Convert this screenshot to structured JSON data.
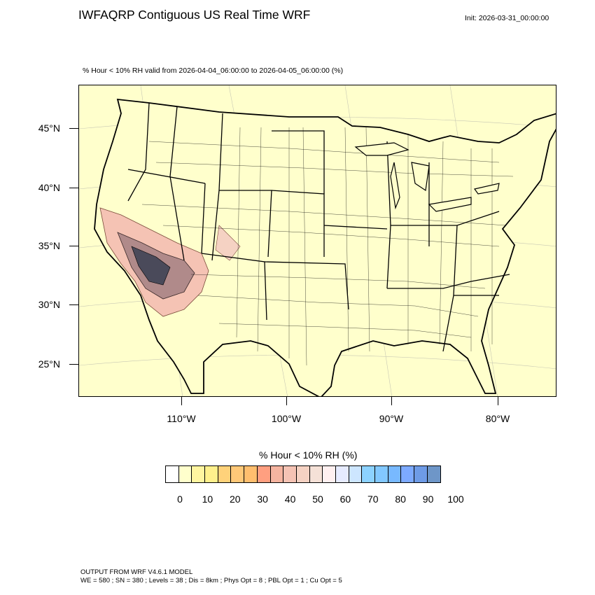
{
  "title": "IWFAQRP Contiguous US Real Time WRF",
  "init": "Init: 2026-03-31_00:00:00",
  "subtitle": "% Hour < 10% RH valid from 2026-04-04_06:00:00 to 2026-04-05_06:00:00   (%)",
  "map": {
    "background_color": "#ffffcc",
    "lat_labels": [
      "45°N",
      "40°N",
      "35°N",
      "30°N",
      "25°N"
    ],
    "lon_labels": [
      "110°W",
      "100°W",
      "90°W",
      "80°W"
    ],
    "fill_region": "Southwest US (southern California, Nevada, Arizona, western New Mexico)"
  },
  "colorbar": {
    "title": "% Hour < 10% RH  (%)",
    "colors": [
      "#ffffff",
      "#ffffcc",
      "#fff5a0",
      "#fff08c",
      "#ffd27a",
      "#ffc878",
      "#ffbe6e",
      "#ff9f80",
      "#f5b4a0",
      "#f5c3b4",
      "#f5d2c3",
      "#f5e1d7",
      "#fff0f0",
      "#e6ebff",
      "#cde6ff",
      "#8cd2ff",
      "#82c8ff",
      "#78b9ff",
      "#7daaff",
      "#6e9be6",
      "#6e96c8"
    ],
    "labels": [
      "0",
      "10",
      "20",
      "30",
      "40",
      "50",
      "60",
      "70",
      "80",
      "90",
      "100"
    ]
  },
  "footer": {
    "line1": "OUTPUT FROM WRF V4.6.1 MODEL",
    "line2": "WE = 580 ; SN = 380 ; Levels = 38 ; Dis = 8km ; Phys Opt = 8 ; PBL Opt = 1 ; Cu Opt = 5"
  }
}
